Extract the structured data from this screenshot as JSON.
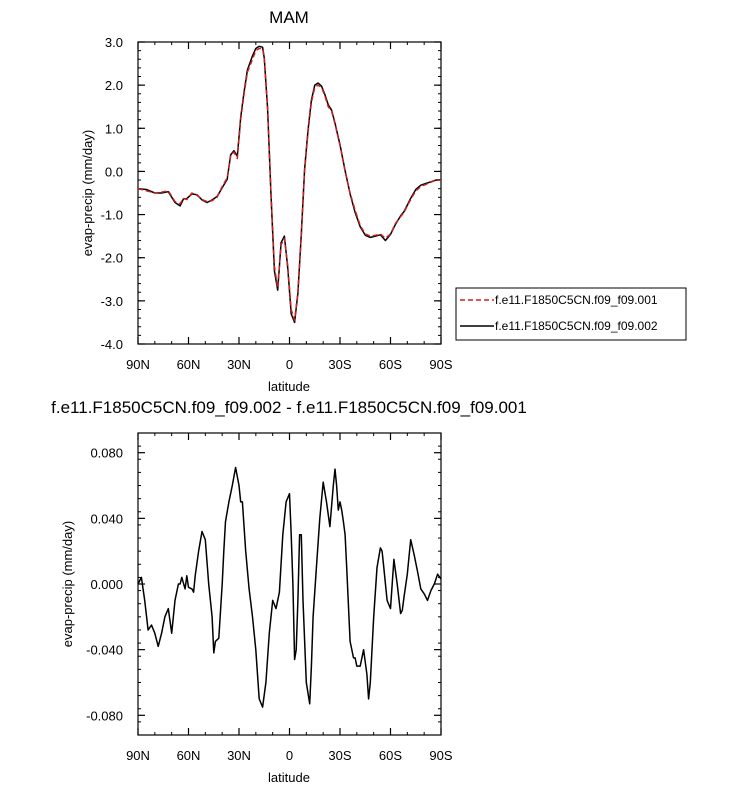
{
  "charts": {
    "top": {
      "title": "MAM",
      "xlabel": "latitude",
      "ylabel": "evap-precip (mm/day)"
    },
    "bottom": {
      "title": "f.e11.F1850C5CN.f09_f09.002 - f.e11.F1850C5CN.f09_f09.001",
      "xlabel": "latitude",
      "ylabel": "evap-precip (mm/day)"
    }
  },
  "legend": {
    "items": [
      {
        "label": "f.e11.F1850C5CN.f09_f09.001",
        "color": "#d11f1f",
        "dash": true
      },
      {
        "label": "f.e11.F1850C5CN.f09_f09.002",
        "color": "#000000",
        "dash": false
      }
    ]
  },
  "chart_data": [
    {
      "type": "line",
      "title": "MAM",
      "xlabel": "latitude",
      "ylabel": "evap-precip (mm/day)",
      "x_tick_labels": [
        "90N",
        "60N",
        "30N",
        "0",
        "30S",
        "60S",
        "90S"
      ],
      "x_tick_values": [
        90,
        60,
        30,
        0,
        -30,
        -60,
        -90
      ],
      "y_tick_labels": [
        "-4.0",
        "-3.0",
        "-2.0",
        "-1.0",
        "0.0",
        "1.0",
        "2.0",
        "3.0"
      ],
      "xlim": [
        90,
        -90
      ],
      "ylim": [
        -4,
        3
      ],
      "series": [
        {
          "name": "f.e11.F1850C5CN.f09_f09.001",
          "color": "#d11f1f",
          "dash": true,
          "x": [
            90,
            85,
            80,
            76,
            72,
            68,
            65,
            63,
            61,
            58,
            55,
            52,
            49,
            46,
            43,
            40,
            37,
            35,
            33,
            31,
            29,
            27,
            25,
            22,
            20,
            18,
            16,
            15,
            13,
            11,
            9,
            7,
            5,
            3,
            1,
            -1,
            -3,
            -5,
            -7,
            -9,
            -11,
            -13,
            -15,
            -17,
            -19,
            -21,
            -23,
            -25,
            -27,
            -30,
            -33,
            -36,
            -39,
            -42,
            -45,
            -48,
            -51,
            -54,
            -57,
            -60,
            -63,
            -66,
            -68,
            -70,
            -72,
            -75,
            -78,
            -81,
            -84,
            -87,
            -90
          ],
          "y": [
            -0.4,
            -0.45,
            -0.5,
            -0.48,
            -0.45,
            -0.7,
            -0.75,
            -0.62,
            -0.65,
            -0.5,
            -0.55,
            -0.65,
            -0.7,
            -0.68,
            -0.6,
            -0.35,
            -0.15,
            0.35,
            0.45,
            0.3,
            1.2,
            1.8,
            2.3,
            2.6,
            2.8,
            2.85,
            2.85,
            2.6,
            1.5,
            -0.5,
            -2.2,
            -2.7,
            -1.7,
            -1.55,
            -2.2,
            -3.2,
            -3.45,
            -2.8,
            -1.5,
            0.0,
            0.9,
            1.6,
            1.95,
            2.0,
            1.95,
            1.75,
            1.5,
            1.4,
            1.1,
            0.6,
            0.0,
            -0.5,
            -0.9,
            -1.25,
            -1.45,
            -1.5,
            -1.48,
            -1.45,
            -1.55,
            -1.45,
            -1.2,
            -1.05,
            -0.95,
            -0.8,
            -0.65,
            -0.45,
            -0.35,
            -0.3,
            -0.25,
            -0.2,
            -0.2
          ]
        },
        {
          "name": "f.e11.F1850C5CN.f09_f09.002",
          "color": "#000000",
          "dash": false,
          "x": [
            90,
            85,
            80,
            76,
            72,
            68,
            65,
            63,
            61,
            58,
            55,
            52,
            49,
            46,
            43,
            40,
            37,
            35,
            33,
            31,
            29,
            27,
            25,
            22,
            20,
            18,
            16,
            15,
            13,
            11,
            9,
            7,
            5,
            3,
            1,
            -1,
            -3,
            -5,
            -7,
            -9,
            -11,
            -13,
            -15,
            -17,
            -19,
            -21,
            -23,
            -25,
            -27,
            -30,
            -33,
            -36,
            -39,
            -42,
            -45,
            -48,
            -51,
            -54,
            -57,
            -60,
            -63,
            -66,
            -68,
            -70,
            -72,
            -75,
            -78,
            -81,
            -84,
            -87,
            -90
          ],
          "y": [
            -0.4,
            -0.42,
            -0.5,
            -0.5,
            -0.47,
            -0.72,
            -0.8,
            -0.64,
            -0.63,
            -0.52,
            -0.54,
            -0.66,
            -0.72,
            -0.66,
            -0.58,
            -0.38,
            -0.18,
            0.38,
            0.48,
            0.35,
            1.25,
            1.85,
            2.35,
            2.68,
            2.85,
            2.9,
            2.88,
            2.62,
            1.45,
            -0.55,
            -2.3,
            -2.75,
            -1.65,
            -1.5,
            -2.25,
            -3.3,
            -3.5,
            -2.82,
            -1.45,
            0.05,
            0.95,
            1.65,
            2.0,
            2.05,
            1.98,
            1.78,
            1.55,
            1.42,
            1.12,
            0.62,
            0.02,
            -0.52,
            -0.95,
            -1.28,
            -1.48,
            -1.53,
            -1.5,
            -1.47,
            -1.6,
            -1.46,
            -1.22,
            -1.03,
            -0.93,
            -0.78,
            -0.62,
            -0.42,
            -0.32,
            -0.28,
            -0.24,
            -0.2,
            -0.19
          ]
        }
      ]
    },
    {
      "type": "line",
      "title": "f.e11.F1850C5CN.f09_f09.002 - f.e11.F1850C5CN.f09_f09.001",
      "xlabel": "latitude",
      "ylabel": "evap-precip (mm/day)",
      "x_tick_labels": [
        "90N",
        "60N",
        "30N",
        "0",
        "30S",
        "60S",
        "90S"
      ],
      "x_tick_values": [
        90,
        60,
        30,
        0,
        -30,
        -60,
        -90
      ],
      "y_tick_labels": [
        "-0.080",
        "-0.040",
        "0.000",
        "0.040",
        "0.080"
      ],
      "y_tick_values": [
        -0.08,
        -0.04,
        0.0,
        0.04,
        0.08
      ],
      "xlim": [
        90,
        -90
      ],
      "ylim": [
        -0.092,
        0.092
      ],
      "series": [
        {
          "color": "#000000",
          "x": [
            90,
            88,
            86,
            84,
            82,
            80,
            78,
            76,
            74,
            72,
            70,
            68,
            66,
            65,
            64,
            62,
            61,
            60,
            58,
            57,
            56,
            54,
            52,
            50,
            48,
            46,
            45,
            44,
            42,
            40,
            39,
            38,
            36,
            34,
            32,
            30,
            29,
            28,
            26,
            24,
            22,
            20,
            18,
            16,
            14,
            12,
            10,
            8,
            6,
            4,
            2,
            0,
            -1,
            -2,
            -3,
            -4,
            -5,
            -6,
            -7,
            -8,
            -10,
            -12,
            -13,
            -14,
            -16,
            -18,
            -20,
            -22,
            -24,
            -26,
            -27,
            -28,
            -29,
            -30,
            -31,
            -32,
            -33,
            -34,
            -36,
            -38,
            -39,
            -40,
            -42,
            -44,
            -46,
            -47,
            -48,
            -50,
            -52,
            -54,
            -55,
            -56,
            -58,
            -60,
            -62,
            -64,
            -66,
            -67,
            -68,
            -70,
            -72,
            -74,
            -76,
            -78,
            -80,
            -82,
            -84,
            -86,
            -88,
            -90
          ],
          "y": [
            0.0,
            0.004,
            -0.01,
            -0.028,
            -0.025,
            -0.03,
            -0.038,
            -0.03,
            -0.02,
            -0.015,
            -0.03,
            -0.01,
            0.0,
            0.0,
            0.004,
            -0.003,
            0.005,
            -0.002,
            -0.003,
            -0.005,
            0.005,
            0.02,
            0.032,
            0.027,
            0.0,
            -0.02,
            -0.042,
            -0.035,
            -0.033,
            0.0,
            0.02,
            0.038,
            0.05,
            0.06,
            0.071,
            0.06,
            0.05,
            0.05,
            0.02,
            -0.003,
            -0.02,
            -0.04,
            -0.07,
            -0.075,
            -0.06,
            -0.03,
            -0.01,
            -0.015,
            -0.005,
            0.03,
            0.05,
            0.055,
            0.03,
            0.0,
            -0.046,
            -0.04,
            -0.01,
            0.03,
            0.03,
            -0.01,
            -0.06,
            -0.073,
            -0.05,
            -0.02,
            0.01,
            0.04,
            0.062,
            0.05,
            0.035,
            0.06,
            0.07,
            0.06,
            0.045,
            0.05,
            0.045,
            0.038,
            0.03,
            0.01,
            -0.035,
            -0.045,
            -0.045,
            -0.05,
            -0.05,
            -0.04,
            -0.055,
            -0.07,
            -0.06,
            -0.02,
            0.01,
            0.022,
            0.02,
            0.01,
            -0.01,
            -0.015,
            0.015,
            0.0,
            -0.018,
            -0.016,
            -0.008,
            0.006,
            0.027,
            0.018,
            0.008,
            -0.003,
            -0.006,
            -0.01,
            -0.004,
            0.0,
            0.006,
            0.003
          ]
        }
      ]
    }
  ]
}
